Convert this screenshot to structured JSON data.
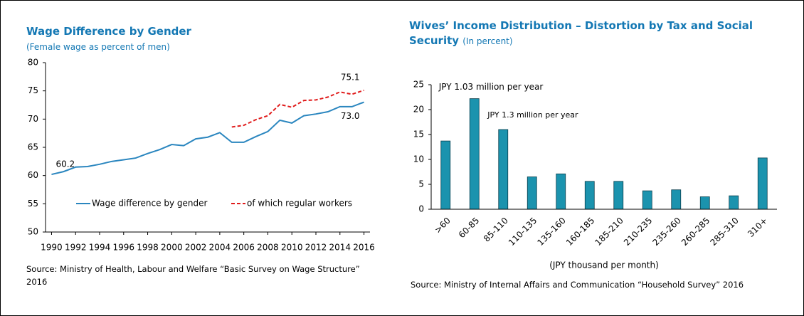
{
  "chart_data": [
    {
      "type": "line",
      "title": "Wage Difference by Gender",
      "subtitle": "(Female wage as percent of men)",
      "source": "Source: Ministry of Health, Labour and Welfare “Basic Survey on Wage Structure” 2016",
      "x": [
        1990,
        1991,
        1992,
        1993,
        1994,
        1995,
        1996,
        1997,
        1998,
        1999,
        2000,
        2001,
        2002,
        2003,
        2004,
        2005,
        2006,
        2007,
        2008,
        2009,
        2010,
        2011,
        2012,
        2013,
        2014,
        2015,
        2016
      ],
      "series": [
        {
          "name": "Wage difference by gender",
          "color": "#2a86bf",
          "dash": false,
          "values": [
            60.2,
            60.7,
            61.5,
            61.6,
            62.0,
            62.5,
            62.8,
            63.1,
            63.9,
            64.6,
            65.5,
            65.3,
            66.5,
            66.8,
            67.6,
            65.9,
            65.9,
            66.9,
            67.8,
            69.8,
            69.3,
            70.6,
            70.9,
            71.3,
            72.2,
            72.2,
            73.0
          ],
          "value_labels": [
            "60.2",
            null,
            null,
            null,
            null,
            null,
            null,
            null,
            null,
            null,
            null,
            null,
            null,
            null,
            null,
            null,
            null,
            null,
            null,
            null,
            null,
            null,
            null,
            null,
            null,
            null,
            "73.0"
          ]
        },
        {
          "name": "of which regular workers",
          "color": "#e01b1b",
          "dash": true,
          "values": [
            null,
            null,
            null,
            null,
            null,
            null,
            null,
            null,
            null,
            null,
            null,
            null,
            null,
            null,
            null,
            68.6,
            68.9,
            69.9,
            70.6,
            72.6,
            72.1,
            73.3,
            73.4,
            73.9,
            74.8,
            74.4,
            75.1
          ],
          "value_labels": [
            null,
            null,
            null,
            null,
            null,
            null,
            null,
            null,
            null,
            null,
            null,
            null,
            null,
            null,
            null,
            null,
            null,
            null,
            null,
            null,
            null,
            null,
            null,
            null,
            null,
            null,
            "75.1"
          ]
        }
      ],
      "xlim": [
        1989.5,
        2016.5
      ],
      "xticks": [
        1990,
        1992,
        1994,
        1996,
        1998,
        2000,
        2002,
        2004,
        2006,
        2008,
        2010,
        2012,
        2014,
        2016
      ],
      "ylim": [
        50,
        80
      ],
      "yticks": [
        50,
        55,
        60,
        65,
        70,
        75,
        80
      ],
      "legend": "lower-center"
    },
    {
      "type": "bar",
      "title": "Wives’ Income Distribution – Distortion by Tax and Social Security",
      "subtitle": "(In percent)",
      "source": "Source: Ministry of Internal Affairs and Communication “Household Survey” 2016",
      "x_label": "(JPY thousand per month)",
      "annotations": [
        "JPY 1.03 million per year",
        "JPY 1.3 million per year"
      ],
      "categories": [
        ">60",
        "60-85",
        "85-110",
        "110-135",
        "135-160",
        "160-185",
        "185-210",
        "210-235",
        "235-260",
        "260-285",
        "285-310",
        "310+"
      ],
      "values": [
        13.7,
        22.2,
        16.0,
        6.5,
        7.1,
        5.6,
        5.6,
        3.7,
        3.9,
        2.5,
        2.7,
        10.3
      ],
      "color": "#1b93ae",
      "ylim": [
        0,
        25
      ],
      "yticks": [
        0,
        5,
        10,
        15,
        20,
        25
      ]
    }
  ]
}
